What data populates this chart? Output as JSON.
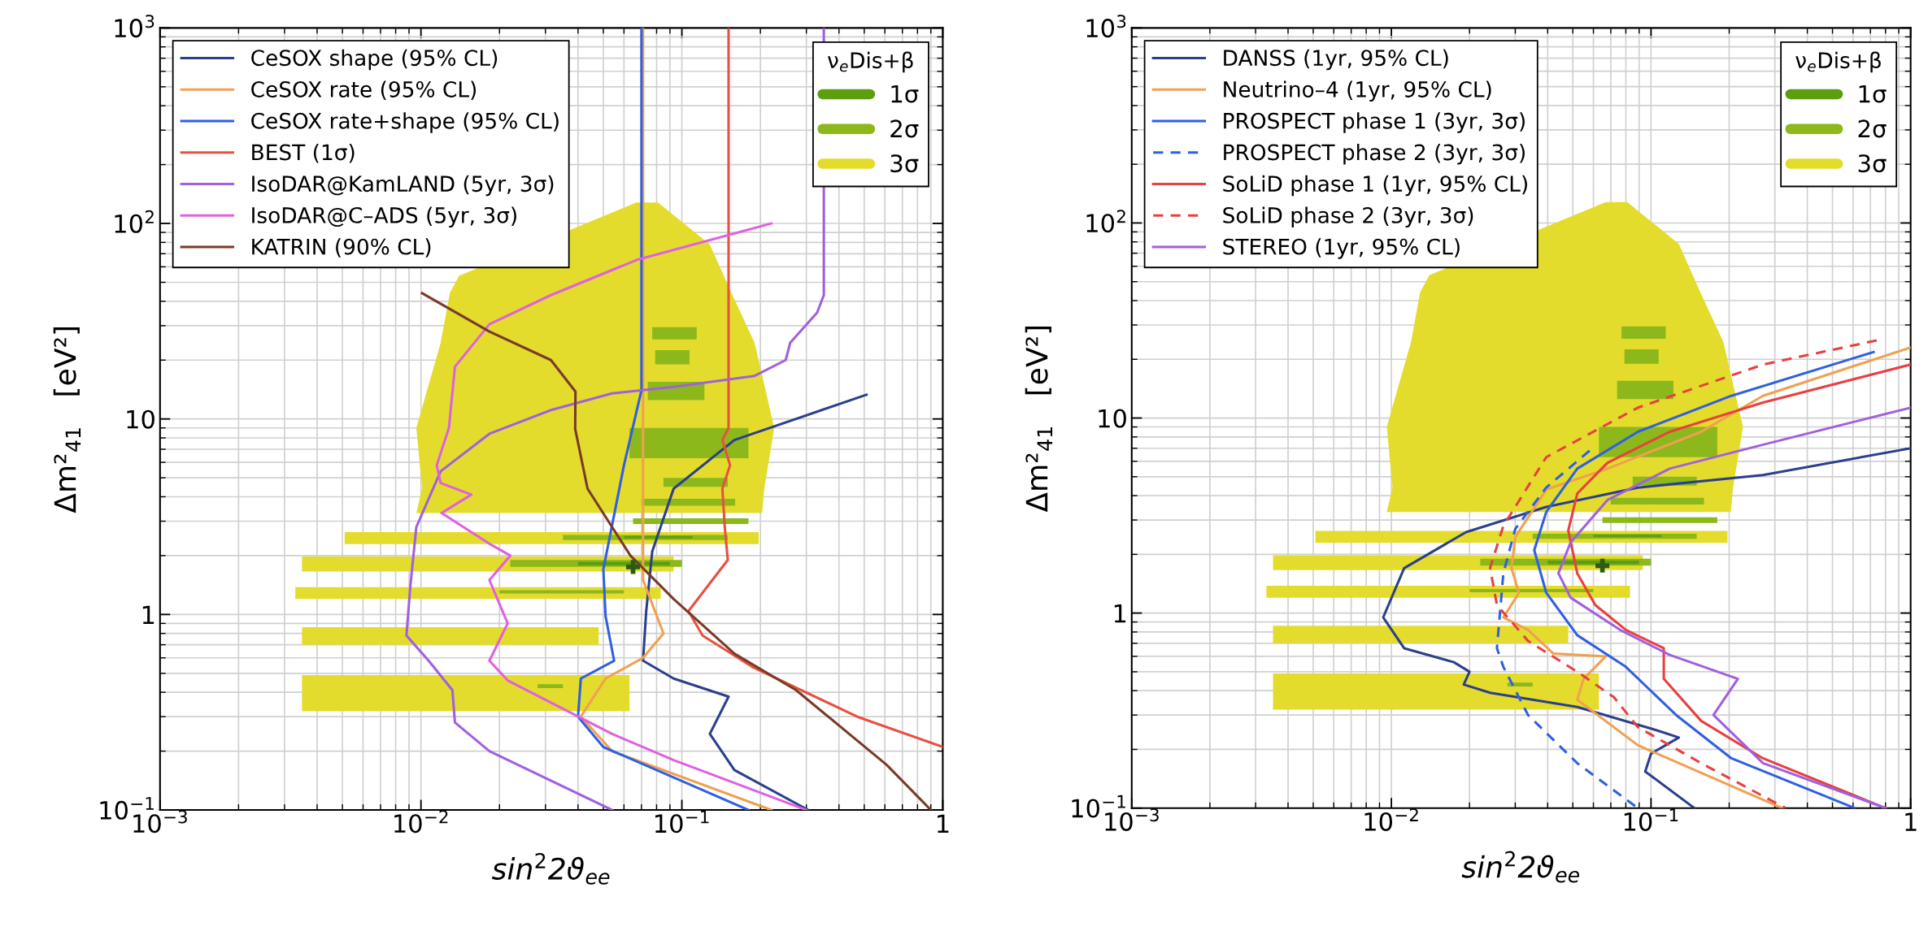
{
  "chart_data": [
    {
      "type": "line",
      "xlabel": "sin$^{2}$2ϑ$_{ee}$",
      "ylabel": "Δm²$_{41}$   [eV²]",
      "legend_title": "ν$_{e}$Dis+β",
      "log": "xy",
      "grid": true,
      "legend": "top left",
      "xlim": [
        0.001,
        1
      ],
      "ylim": [
        0.1,
        1000
      ],
      "xticks": [
        {
          "value": 0.001,
          "label": "10$^{−3}$"
        },
        {
          "value": 0.01,
          "label": "10$^{−2}$"
        },
        {
          "value": 0.1,
          "label": "10$^{−1}$"
        },
        1
      ],
      "yticks": [
        {
          "value": 0.1,
          "label": "10$^{−1}$"
        },
        1,
        10,
        {
          "value": 100,
          "label": "10$^{2}$"
        },
        {
          "value": 1000,
          "label": "10$^{3}$"
        }
      ],
      "series": [
        {
          "name": "3σ",
          "type": "area",
          "color": "#e3dc2c",
          "x": [
            0.067,
            0.081,
            0.128,
            0.155,
            0.19,
            0.226,
            0.207,
            0.203,
            0.0096,
            0.0101,
            0.0096,
            0.0119,
            0.0129,
            0.014,
            null,
            0.0051,
            0.197,
            0.197,
            0.0051,
            null,
            0.0035,
            0.093,
            0.093,
            0.0035,
            null,
            0.0033,
            0.083,
            0.083,
            0.0033,
            null,
            0.0035,
            0.048,
            0.048,
            0.0035,
            null,
            0.0035,
            0.063,
            0.063,
            0.0035
          ],
          "values": [
            128,
            128,
            78,
            44,
            24.5,
            9.0,
            4.4,
            3.3,
            3.3,
            4.4,
            9.0,
            24.5,
            44,
            54,
            null,
            2.29,
            2.29,
            2.64,
            2.64,
            null,
            1.66,
            1.66,
            1.98,
            1.98,
            null,
            1.2,
            1.2,
            1.38,
            1.38,
            null,
            0.7,
            0.7,
            0.86,
            0.86,
            null,
            0.32,
            0.32,
            0.49,
            0.49
          ]
        },
        {
          "name": "2σ",
          "type": "area",
          "color": "#8cb81c",
          "x": [
            0.077,
            0.114,
            0.114,
            0.077,
            null,
            0.079,
            0.107,
            0.107,
            0.079,
            null,
            0.074,
            0.122,
            0.122,
            0.074,
            null,
            0.063,
            0.18,
            0.18,
            0.063,
            null,
            0.085,
            0.15,
            0.15,
            0.085,
            null,
            0.07,
            0.16,
            0.16,
            0.07,
            null,
            0.065,
            0.18,
            0.18,
            0.065,
            null,
            0.035,
            0.15,
            0.15,
            0.035,
            null,
            0.022,
            0.1,
            0.1,
            0.022,
            null,
            0.02,
            0.06,
            0.06,
            0.02,
            null,
            0.028,
            0.035,
            0.035,
            0.028
          ],
          "values": [
            25.5,
            25.5,
            29.5,
            29.5,
            null,
            19,
            19,
            22.5,
            22.5,
            null,
            12.5,
            12.5,
            15.5,
            15.5,
            null,
            6.3,
            6.3,
            9.0,
            9.0,
            null,
            4.5,
            4.5,
            5.0,
            5.0,
            null,
            3.6,
            3.6,
            3.9,
            3.9,
            null,
            2.9,
            2.9,
            3.1,
            3.1,
            null,
            2.4,
            2.4,
            2.55,
            2.55,
            null,
            1.75,
            1.75,
            1.9,
            1.9,
            null,
            1.28,
            1.28,
            1.33,
            1.33,
            null,
            0.42,
            0.42,
            0.44,
            0.44
          ]
        },
        {
          "name": "1σ",
          "type": "area",
          "color": "#5c9e10",
          "x": [
            0.04,
            0.09,
            0.09,
            0.04,
            null,
            0.06,
            0.11,
            0.11,
            0.06
          ],
          "values": [
            1.78,
            1.78,
            1.86,
            1.86,
            null,
            2.45,
            2.45,
            2.52,
            2.52
          ]
        },
        {
          "type": "scatter",
          "marker": "cross",
          "color": "#2f5a10",
          "x": [
            0.065
          ],
          "values": [
            1.75
          ]
        },
        {
          "name": "CeSOX shape (95% CL)",
          "color": "#2c3f8c",
          "x": [
            0.51,
            0.159,
            0.093,
            0.077,
            0.073,
            0.071,
            0.093,
            0.151,
            0.128,
            0.159,
            0.305
          ],
          "values": [
            13.3,
            7.8,
            4.4,
            2.1,
            1.04,
            0.58,
            0.47,
            0.38,
            0.245,
            0.16,
            0.1
          ]
        },
        {
          "name": "CeSOX rate (95% CL)",
          "color": "#f0a050",
          "x": [
            0.071,
            0.071,
            0.085,
            0.071,
            0.051,
            0.041,
            0.054,
            0.22
          ],
          "values": [
            1000,
            1.5,
            0.8,
            0.6,
            0.47,
            0.3,
            0.2,
            0.1
          ]
        },
        {
          "name": "CeSOX rate+shape (95% CL)",
          "color": "#3060e0",
          "x": [
            0.07,
            0.07,
            0.06,
            0.05,
            0.051,
            0.055,
            0.041,
            0.04,
            0.05,
            0.18
          ],
          "values": [
            1000,
            14,
            5.8,
            1.7,
            0.98,
            0.58,
            0.47,
            0.3,
            0.21,
            0.1
          ]
        },
        {
          "name": "BEST (1σ)",
          "color": "#e85040",
          "x": [
            0.151,
            0.151,
            0.143,
            0.153,
            0.143,
            0.146,
            0.15,
            0.12,
            0.106,
            0.12,
            0.186,
            0.47,
            1.0
          ],
          "values": [
            1000,
            9,
            7.8,
            5.8,
            4.4,
            2.8,
            1.9,
            1.29,
            1.04,
            0.78,
            0.54,
            0.3,
            0.21
          ]
        },
        {
          "name": "IsoDAR@KamLAND (5yr, 3σ)",
          "color": "#a060e0",
          "x": [
            0.35,
            0.35,
            0.33,
            0.26,
            0.25,
            0.19,
            0.093,
            0.054,
            0.0315,
            0.0183,
            0.0119,
            0.0096,
            0.0091,
            0.0088,
            0.0107,
            0.0132,
            0.0135,
            0.0183,
            0.054
          ],
          "values": [
            1000,
            43,
            35,
            24.5,
            20,
            16.6,
            14.6,
            13.5,
            11.1,
            8.4,
            5.4,
            2.8,
            1.38,
            0.78,
            0.58,
            0.41,
            0.28,
            0.2,
            0.1
          ]
        },
        {
          "name": "IsoDAR@C–ADS (5yr, 3σ)",
          "color": "#e060e0",
          "x": [
            0.22,
            0.067,
            0.0315,
            0.0183,
            0.0135,
            0.0128,
            0.0115,
            0.0119,
            0.0156,
            0.012,
            0.0183,
            0.022,
            0.0183,
            0.0215,
            0.0183,
            0.0215,
            0.054,
            0.093,
            0.3
          ],
          "values": [
            100,
            65,
            43,
            30.5,
            18.5,
            9,
            5.8,
            4.7,
            4.1,
            3.3,
            2.3,
            2.0,
            1.5,
            0.9,
            0.58,
            0.46,
            0.245,
            0.18,
            0.1
          ]
        },
        {
          "name": "KATRIN (90% CL)",
          "color": "#7a3a2a",
          "x": [
            0.0101,
            0.0183,
            0.0315,
            0.0391,
            0.039,
            0.0435,
            0.0635,
            0.093,
            0.159,
            0.274,
            0.61,
            0.9
          ],
          "values": [
            44,
            28,
            20,
            13.8,
            8.9,
            4.4,
            2.0,
            1.2,
            0.63,
            0.41,
            0.17,
            0.1
          ]
        }
      ]
    },
    {
      "type": "line",
      "xlabel": "sin$^{2}$2ϑ$_{ee}$",
      "ylabel": "Δm²$_{41}$   [eV²]",
      "legend_title": "ν$_{e}$Dis+β",
      "log": "xy",
      "grid": true,
      "legend": "top left",
      "xlim": [
        0.001,
        1
      ],
      "ylim": [
        0.1,
        1000
      ],
      "xticks": [
        {
          "value": 0.001,
          "label": "10$^{−3}$"
        },
        {
          "value": 0.01,
          "label": "10$^{−2}$"
        },
        {
          "value": 0.1,
          "label": "10$^{−1}$"
        },
        1
      ],
      "yticks": [
        {
          "value": 0.1,
          "label": "10$^{−1}$"
        },
        1,
        10,
        {
          "value": 100,
          "label": "10$^{2}$"
        },
        {
          "value": 1000,
          "label": "10$^{3}$"
        }
      ],
      "series": [
        {
          "name": "3σ",
          "type": "area",
          "color": "#e3dc2c",
          "x": [
            0.067,
            0.081,
            0.128,
            0.155,
            0.19,
            0.226,
            0.207,
            0.203,
            0.0096,
            0.0101,
            0.0096,
            0.0119,
            0.0129,
            0.014,
            null,
            0.0051,
            0.197,
            0.197,
            0.0051,
            null,
            0.0035,
            0.093,
            0.093,
            0.0035,
            null,
            0.0033,
            0.083,
            0.083,
            0.0033,
            null,
            0.0035,
            0.048,
            0.048,
            0.0035,
            null,
            0.0035,
            0.063,
            0.063,
            0.0035
          ],
          "values": [
            128,
            128,
            78,
            44,
            24.5,
            9.0,
            4.4,
            3.3,
            3.3,
            4.4,
            9.0,
            24.5,
            44,
            54,
            null,
            2.29,
            2.29,
            2.64,
            2.64,
            null,
            1.66,
            1.66,
            1.98,
            1.98,
            null,
            1.2,
            1.2,
            1.38,
            1.38,
            null,
            0.7,
            0.7,
            0.86,
            0.86,
            null,
            0.32,
            0.32,
            0.49,
            0.49
          ]
        },
        {
          "name": "2σ",
          "type": "area",
          "color": "#8cb81c",
          "x": [
            0.077,
            0.114,
            0.114,
            0.077,
            null,
            0.079,
            0.107,
            0.107,
            0.079,
            null,
            0.074,
            0.122,
            0.122,
            0.074,
            null,
            0.063,
            0.18,
            0.18,
            0.063,
            null,
            0.085,
            0.15,
            0.15,
            0.085,
            null,
            0.07,
            0.16,
            0.16,
            0.07,
            null,
            0.065,
            0.18,
            0.18,
            0.065,
            null,
            0.035,
            0.15,
            0.15,
            0.035,
            null,
            0.022,
            0.1,
            0.1,
            0.022,
            null,
            0.02,
            0.06,
            0.06,
            0.02,
            null,
            0.028,
            0.035,
            0.035,
            0.028
          ],
          "values": [
            25.5,
            25.5,
            29.5,
            29.5,
            null,
            19,
            19,
            22.5,
            22.5,
            null,
            12.5,
            12.5,
            15.5,
            15.5,
            null,
            6.3,
            6.3,
            9.0,
            9.0,
            null,
            4.5,
            4.5,
            5.0,
            5.0,
            null,
            3.6,
            3.6,
            3.9,
            3.9,
            null,
            2.9,
            2.9,
            3.1,
            3.1,
            null,
            2.4,
            2.4,
            2.55,
            2.55,
            null,
            1.75,
            1.75,
            1.9,
            1.9,
            null,
            1.28,
            1.28,
            1.33,
            1.33,
            null,
            0.42,
            0.42,
            0.44,
            0.44
          ]
        },
        {
          "name": "1σ",
          "type": "area",
          "color": "#5c9e10",
          "x": [
            0.04,
            0.09,
            0.09,
            0.04,
            null,
            0.06,
            0.11,
            0.11,
            0.06
          ],
          "values": [
            1.78,
            1.78,
            1.86,
            1.86,
            null,
            2.45,
            2.45,
            2.52,
            2.52
          ]
        },
        {
          "type": "scatter",
          "marker": "cross",
          "color": "#2f5a10",
          "x": [
            0.065
          ],
          "values": [
            1.75
          ]
        },
        {
          "name": "DANSS (1yr, 95% CL)",
          "color": "#2c3f8c",
          "x": [
            1.0,
            0.27,
            0.089,
            0.0395,
            0.0194,
            0.0112,
            0.0093,
            0.0112,
            0.0174,
            0.02,
            0.019,
            0.024,
            0.052,
            0.106,
            0.128,
            0.1,
            0.095,
            0.147
          ],
          "values": [
            7.0,
            5.1,
            4.4,
            3.5,
            2.6,
            1.7,
            0.95,
            0.66,
            0.56,
            0.5,
            0.43,
            0.39,
            0.33,
            0.25,
            0.23,
            0.19,
            0.154,
            0.1
          ]
        },
        {
          "name": "Neutrino–4 (1yr, 95% CL)",
          "color": "#f0a050",
          "x": [
            1.0,
            0.27,
            0.156,
            0.068,
            0.0395,
            0.03,
            0.029,
            0.031,
            0.027,
            0.0336,
            0.042,
            0.067,
            0.055,
            0.052,
            0.089,
            0.32
          ],
          "values": [
            23,
            13,
            8.5,
            5.5,
            4.3,
            2.45,
            1.7,
            1.27,
            0.95,
            0.82,
            0.62,
            0.6,
            0.46,
            0.36,
            0.21,
            0.1
          ]
        },
        {
          "name": "PROSPECT phase 1 (3yr, 3σ)",
          "color": "#3060e0",
          "x": [
            0.72,
            0.204,
            0.089,
            0.052,
            0.0395,
            0.0355,
            0.0395,
            0.052,
            0.08,
            0.125,
            0.204,
            0.61
          ],
          "values": [
            21.8,
            13,
            8.5,
            5.5,
            3.3,
            2.1,
            1.27,
            0.77,
            0.53,
            0.3,
            0.18,
            0.1
          ]
        },
        {
          "name": "PROSPECT phase 2 (3yr, 3σ)",
          "color": "#3060e0",
          "line_style": "dashed",
          "x": [
            0.058,
            0.0395,
            0.03,
            0.027,
            0.0255,
            0.027,
            0.0336,
            0.052,
            0.089
          ],
          "values": [
            6.8,
            4.4,
            2.7,
            1.6,
            0.66,
            0.53,
            0.3,
            0.17,
            0.1
          ]
        },
        {
          "name": "SoLiD phase 1 (1yr, 95% CL)",
          "color": "#e84040",
          "x": [
            1.0,
            0.27,
            0.118,
            0.068,
            0.052,
            0.048,
            0.052,
            0.061,
            0.08,
            0.112,
            0.112,
            0.156,
            0.27,
            0.8
          ],
          "values": [
            18.8,
            12,
            8.5,
            5.9,
            4.1,
            2.65,
            1.6,
            1.1,
            0.82,
            0.66,
            0.46,
            0.28,
            0.18,
            0.1
          ]
        },
        {
          "name": "SoLiD phase 2 (3yr, 3σ)",
          "color": "#e84040",
          "line_style": "dashed",
          "x": [
            0.74,
            0.27,
            0.089,
            0.0395,
            0.027,
            0.024,
            0.0255,
            0.0336,
            0.052,
            0.072,
            0.089,
            0.156,
            0.33
          ],
          "values": [
            25,
            18.8,
            11.3,
            6.3,
            2.8,
            1.7,
            1.1,
            0.72,
            0.5,
            0.37,
            0.26,
            0.17,
            0.1
          ]
        },
        {
          "name": "STEREO (1yr, 95% CL)",
          "color": "#a060e0",
          "x": [
            1.0,
            0.27,
            0.118,
            0.068,
            0.049,
            0.044,
            0.049,
            0.076,
            0.118,
            0.216,
            0.174,
            0.27,
            0.8
          ],
          "values": [
            11.3,
            7.3,
            5.5,
            3.8,
            2.3,
            1.6,
            1.2,
            0.82,
            0.61,
            0.46,
            0.3,
            0.17,
            0.1
          ]
        }
      ]
    }
  ]
}
